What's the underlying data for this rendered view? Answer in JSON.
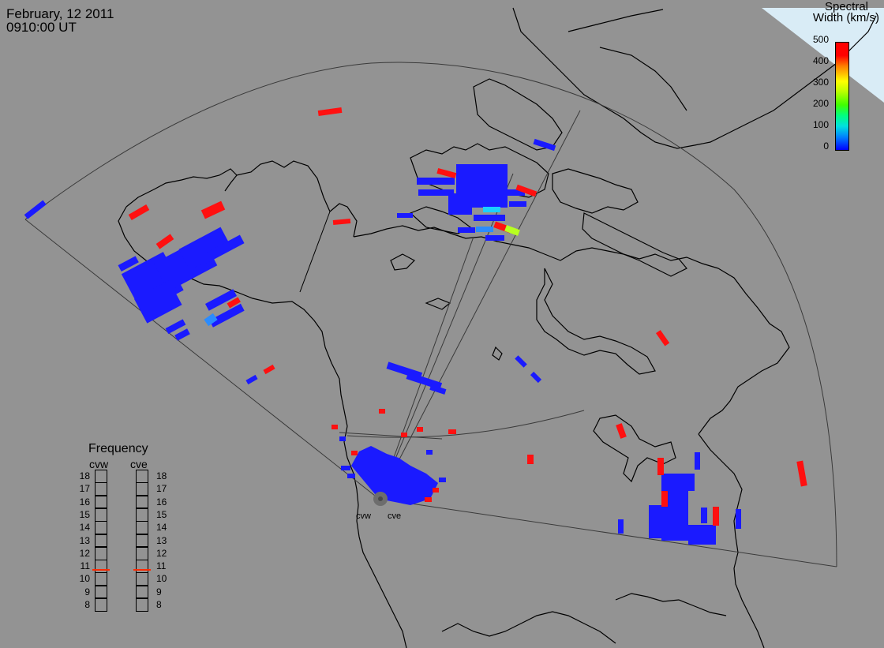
{
  "header": {
    "date": "February, 12 2011",
    "time": "0910:00 UT"
  },
  "colorbar": {
    "title_line1": "Spectral",
    "title_line2": "Width (km/s)",
    "ticks": [
      "500",
      "400",
      "300",
      "200",
      "100",
      "0"
    ]
  },
  "frequency_panel": {
    "title": "Frequency",
    "radars": [
      {
        "name": "cvw",
        "selected": 11
      },
      {
        "name": "cve",
        "selected": 11
      }
    ],
    "levels": [
      "18",
      "17",
      "16",
      "15",
      "14",
      "13",
      "12",
      "11",
      "10",
      "9",
      "8"
    ]
  },
  "radar_sites": [
    "cvw",
    "cve"
  ],
  "colors": {
    "background": "#939393",
    "blue": "#1a1aff",
    "red": "#ff1010",
    "coastline": "#000000"
  }
}
